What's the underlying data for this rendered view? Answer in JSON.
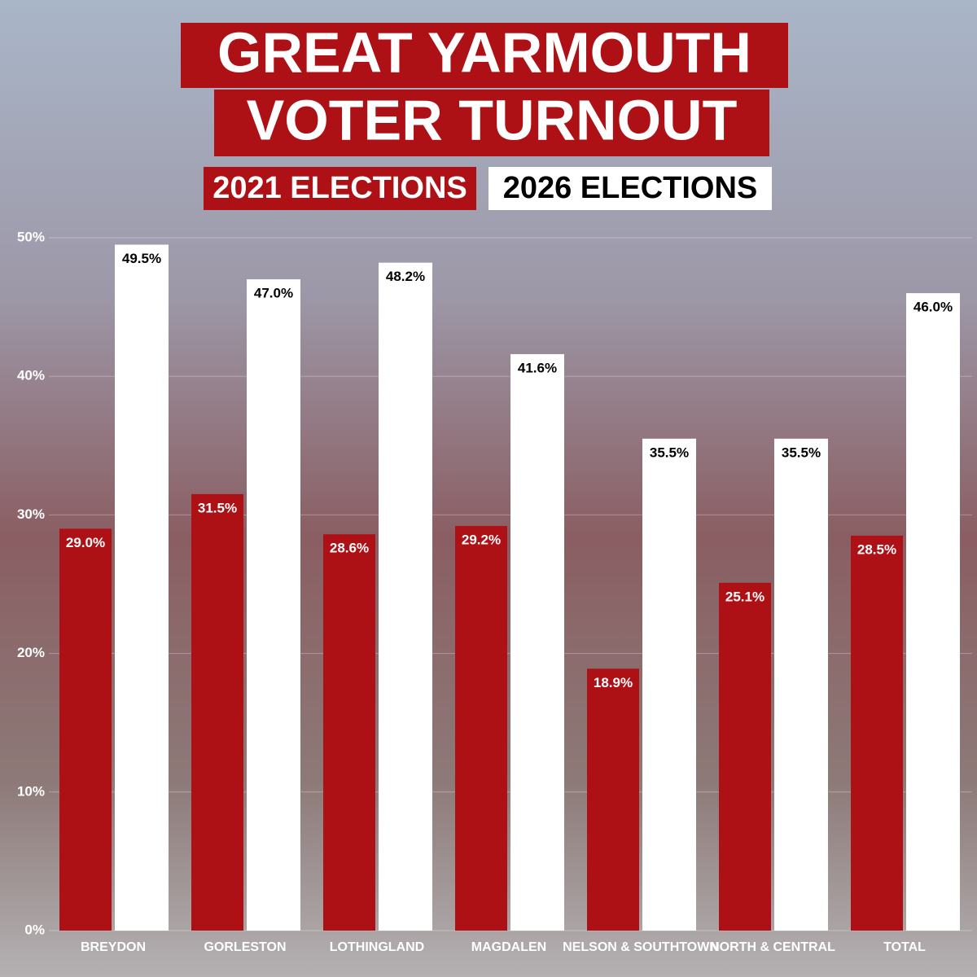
{
  "chart_data": {
    "type": "bar",
    "title": [
      "GREAT YARMOUTH",
      "VOTER TURNOUT"
    ],
    "categories": [
      "BREYDON",
      "GORLESTON",
      "LOTHINGLAND",
      "MAGDALEN",
      "NELSON & SOUTHTOWN",
      "NORTH & CENTRAL",
      "TOTAL"
    ],
    "series": [
      {
        "name": "2021 ELECTIONS",
        "color": "#ad1116",
        "values": [
          29.0,
          31.5,
          28.6,
          29.2,
          18.9,
          25.1,
          28.5
        ],
        "value_labels": [
          "29.0%",
          "31.5%",
          "28.6%",
          "29.2%",
          "18.9%",
          "25.1%",
          "28.5%"
        ]
      },
      {
        "name": "2026 ELECTIONS",
        "color": "#ffffff",
        "values": [
          49.5,
          47.0,
          48.2,
          41.6,
          35.5,
          35.5,
          46.0
        ],
        "value_labels": [
          "49.5%",
          "47.0%",
          "48.2%",
          "41.6%",
          "35.5%",
          "35.5%",
          "46.0%"
        ]
      }
    ],
    "ylim": [
      0,
      50
    ],
    "yticks": [
      {
        "value": 0,
        "label": "0%"
      },
      {
        "value": 10,
        "label": "10%"
      },
      {
        "value": 20,
        "label": "20%"
      },
      {
        "value": 30,
        "label": "30%"
      },
      {
        "value": 40,
        "label": "40%"
      },
      {
        "value": 50,
        "label": "50%"
      }
    ],
    "grid": true
  }
}
